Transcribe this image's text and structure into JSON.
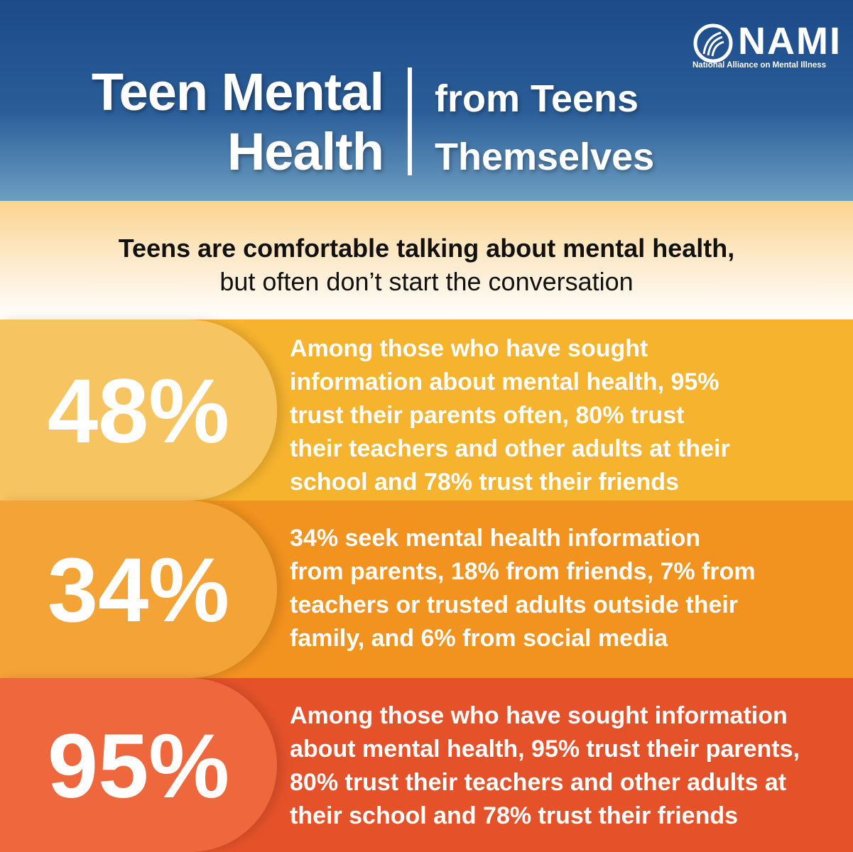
{
  "header": {
    "logo": "NAMI",
    "logo_subtitle": "National Alliance on Mental Illness",
    "title_lines": [
      "Teen Mental",
      "Health"
    ],
    "subtitle_lines": [
      "from Teens",
      "Themselves"
    ]
  },
  "intro": {
    "lines": [
      "Teens are comfortable talking about mental health,",
      "but often don’t start the conversation"
    ]
  },
  "rows": [
    {
      "stat": "48%",
      "lines": [
        [
          "Among those who have sought"
        ],
        [
          "information about mental health, 95%"
        ],
        [
          "trust their parents often, 80% trust"
        ],
        [
          "their teachers and other adults at their"
        ],
        [
          "school and 78% trust their friends"
        ]
      ]
    },
    {
      "stat": "34%",
      "lines": [
        [
          "34% seek mental health information"
        ],
        [
          "from parents, 18% from friends, 7% from"
        ],
        [
          "teachers or trusted adults outside their"
        ],
        [
          "family, and 6% from social media"
        ]
      ]
    },
    {
      "stat": "95%",
      "lines": [
        [
          "Among those who have sought information"
        ],
        [
          "about mental health, ",
          "95%",
          " trust their parents,"
        ],
        [
          "80%",
          " trust their teachers and other adults at"
        ],
        [
          "their school and ",
          "78%",
          " trust their friends"
        ]
      ]
    }
  ]
}
